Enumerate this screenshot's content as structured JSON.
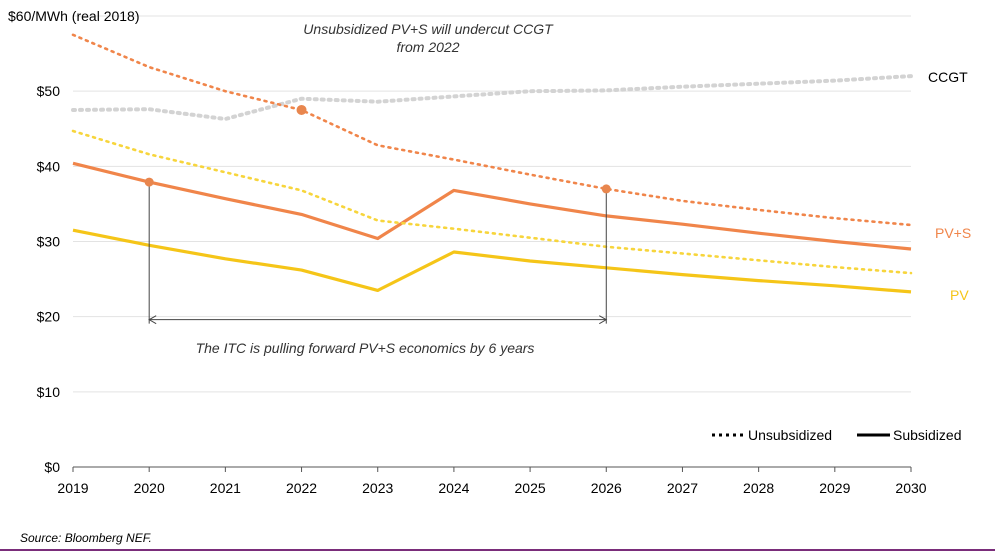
{
  "chart_data": {
    "type": "line",
    "ylabel": "$60/MWh (real 2018)",
    "ylim": [
      0,
      60
    ],
    "yticks": [
      0,
      10,
      20,
      30,
      40,
      50
    ],
    "ytick_labels": [
      "$0",
      "$10",
      "$20",
      "$30",
      "$40",
      "$50"
    ],
    "x": [
      2019,
      2020,
      2021,
      2022,
      2023,
      2024,
      2025,
      2026,
      2027,
      2028,
      2029,
      2030
    ],
    "xtick_labels": [
      "2019",
      "2020",
      "2021",
      "2022",
      "2023",
      "2024",
      "2025",
      "2026",
      "2027",
      "2028",
      "2029",
      "2030"
    ],
    "grid": "horizontal",
    "series": [
      {
        "name": "CCGT",
        "style": "unsubsidized",
        "color": "#d3d3d3",
        "values": [
          47.5,
          47.6,
          46.3,
          49.0,
          48.6,
          49.3,
          50.0,
          50.1,
          50.6,
          51.0,
          51.4,
          52.0
        ]
      },
      {
        "name": "PV+S",
        "style": "unsubsidized",
        "color": "#f0854a",
        "values": [
          57.5,
          53.2,
          50.0,
          47.5,
          42.8,
          40.9,
          38.9,
          37.0,
          35.4,
          34.2,
          33.1,
          32.2
        ]
      },
      {
        "name": "PV+S",
        "style": "subsidized",
        "color": "#f0854a",
        "values": [
          40.4,
          37.9,
          35.7,
          33.6,
          30.4,
          36.8,
          35.0,
          33.4,
          32.3,
          31.1,
          30.0,
          29.0
        ]
      },
      {
        "name": "PV",
        "style": "unsubsidized",
        "color": "#f7d53c",
        "values": [
          44.7,
          41.6,
          39.2,
          36.8,
          32.8,
          31.7,
          30.5,
          29.3,
          28.4,
          27.5,
          26.6,
          25.8
        ]
      },
      {
        "name": "PV",
        "style": "subsidized",
        "color": "#f5c518",
        "values": [
          31.5,
          29.5,
          27.7,
          26.2,
          23.5,
          28.6,
          27.4,
          26.5,
          25.6,
          24.8,
          24.1,
          23.3
        ]
      }
    ],
    "series_labels": [
      {
        "text": "CCGT",
        "color": "#000000"
      },
      {
        "text": "PV+S",
        "color": "#f0854a"
      },
      {
        "text": "PV",
        "color": "#f5c518"
      }
    ],
    "markers": [
      {
        "x": 2022,
        "y": 47.5,
        "color": "#e8864e"
      },
      {
        "x": 2020,
        "y": 37.9,
        "color": "#e8864e"
      },
      {
        "x": 2026,
        "y": 37.0,
        "color": "#e8864e"
      }
    ],
    "bracket": {
      "x1": 2020,
      "x2": 2026,
      "y_top1": 37.9,
      "y_top2": 37.0,
      "y_arrow": 19.6
    },
    "annotations": {
      "top_line1": "Unsubsidized PV+S will undercut CCGT",
      "top_line2": "from 2022",
      "bracket": "The ITC is pulling forward PV+S economics by 6 years"
    },
    "legend": {
      "placement": "bottom-right",
      "items": [
        {
          "label": "Unsubsidized",
          "style": "dotted"
        },
        {
          "label": "Subsidized",
          "style": "solid"
        }
      ]
    }
  },
  "footer": {
    "source": "Source: Bloomberg NEF."
  }
}
